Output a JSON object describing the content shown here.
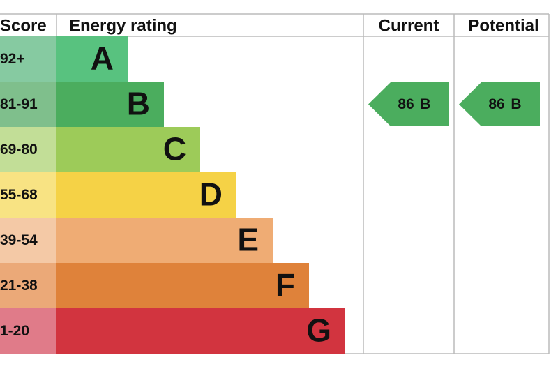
{
  "headers": {
    "score": "Score",
    "rating": "Energy rating",
    "current": "Current",
    "potential": "Potential"
  },
  "bands": [
    {
      "score": "92+",
      "letter": "A",
      "color": "#58c27f",
      "tint": "#86caa1"
    },
    {
      "score": "81-91",
      "letter": "B",
      "color": "#4bad5e",
      "tint": "#7fbf8c"
    },
    {
      "score": "69-80",
      "letter": "C",
      "color": "#9dcb59",
      "tint": "#c2de97"
    },
    {
      "score": "55-68",
      "letter": "D",
      "color": "#f5d246",
      "tint": "#f8e383"
    },
    {
      "score": "39-54",
      "letter": "E",
      "color": "#efac74",
      "tint": "#f4c9a6"
    },
    {
      "score": "21-38",
      "letter": "F",
      "color": "#df823a",
      "tint": "#eba978"
    },
    {
      "score": "1-20",
      "letter": "G",
      "color": "#d2343f",
      "tint": "#e07b89"
    }
  ],
  "current": {
    "value": 86,
    "letter": "B",
    "color": "#4bad5e"
  },
  "potential": {
    "value": 86,
    "letter": "B",
    "color": "#4bad5e"
  }
}
